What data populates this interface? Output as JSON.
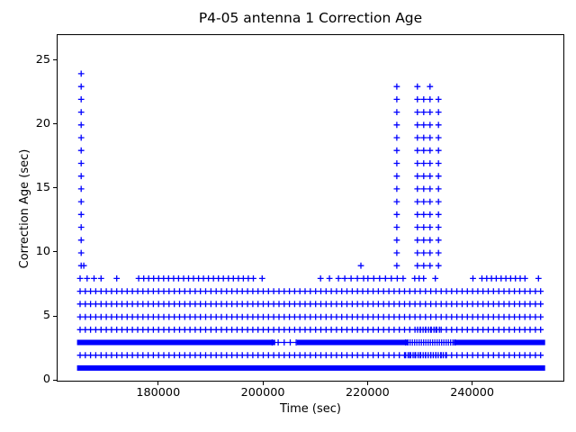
{
  "chart_data": {
    "type": "scatter",
    "title": "P4-05 antenna 1 Correction Age",
    "xlabel": "Time (sec)",
    "ylabel": "Correction Age (sec)",
    "marker": "plus",
    "marker_color": "#0000ff",
    "axis_color": "#000000",
    "background_color": "#ffffff",
    "grid": false,
    "legend": null,
    "xlim": [
      160600,
      257600
    ],
    "ylim": [
      -0.13,
      27.02
    ],
    "xticks": [
      180000,
      200000,
      220000,
      240000
    ],
    "yticks": [
      0,
      5,
      10,
      15,
      20,
      25
    ],
    "time_span": [
      164900,
      253180
    ],
    "description": "Correction age bands at 1-7 sec across whole pass; sparse 8-sec events; outage spikes up to 24 sec at start (~165100 s) and 22-23 sec near 225400-233400 s",
    "dense_marker_rows": [
      {
        "y": 2,
        "t0": 164900,
        "t1": 253180,
        "step": 1000
      },
      {
        "y": 4,
        "t0": 164900,
        "t1": 253180,
        "step": 1000
      },
      {
        "y": 5,
        "t0": 164900,
        "t1": 253180,
        "step": 1000
      },
      {
        "y": 6,
        "t0": 164900,
        "t1": 253180,
        "step": 1000
      },
      {
        "y": 7,
        "t0": 164900,
        "t1": 253180,
        "step": 1000
      },
      {
        "y": 2,
        "t0": 227100,
        "t1": 235200,
        "step": 480
      },
      {
        "y": 4,
        "t0": 229400,
        "t1": 234000,
        "step": 520
      }
    ],
    "solid_bands": [
      {
        "y": 1,
        "segments": [
          [
            164900,
            253180
          ]
        ]
      },
      {
        "y": 3,
        "segments": [
          [
            164900,
            201600
          ],
          [
            206900,
            227100
          ],
          [
            236900,
            253180
          ]
        ]
      }
    ],
    "band3_sparse_segments": [
      {
        "y": 3,
        "t0": 201600,
        "t1": 206900,
        "step": 1150
      },
      {
        "y": 3,
        "t0": 227100,
        "t1": 236900,
        "step": 430
      }
    ],
    "row8_segments": [
      [
        164900,
        168900,
        4
      ],
      [
        171900,
        171900,
        1
      ],
      [
        176100,
        198000,
        24
      ],
      [
        199700,
        199700,
        1
      ],
      [
        210850,
        210850,
        1
      ],
      [
        212560,
        212560,
        1
      ],
      [
        214280,
        219080,
        5
      ],
      [
        219900,
        226620,
        7
      ],
      [
        228840,
        230550,
        3
      ],
      [
        232780,
        232780,
        1
      ],
      [
        239980,
        239980,
        1
      ],
      [
        241690,
        249920,
        10
      ],
      [
        252490,
        252490,
        1
      ]
    ],
    "spike_columns": [
      {
        "t": 165100,
        "v0": 9,
        "v1": 24
      },
      {
        "t": 225420,
        "v0": 9,
        "v1": 23
      },
      {
        "t": 229360,
        "v0": 9,
        "v1": 23
      },
      {
        "t": 230560,
        "v0": 9,
        "v1": 22
      },
      {
        "t": 231760,
        "v0": 9,
        "v1": 23
      },
      {
        "t": 233390,
        "v0": 9,
        "v1": 22
      }
    ],
    "extra_points": [
      {
        "t": 165600,
        "y": 9
      },
      {
        "t": 218560,
        "y": 9
      }
    ]
  }
}
